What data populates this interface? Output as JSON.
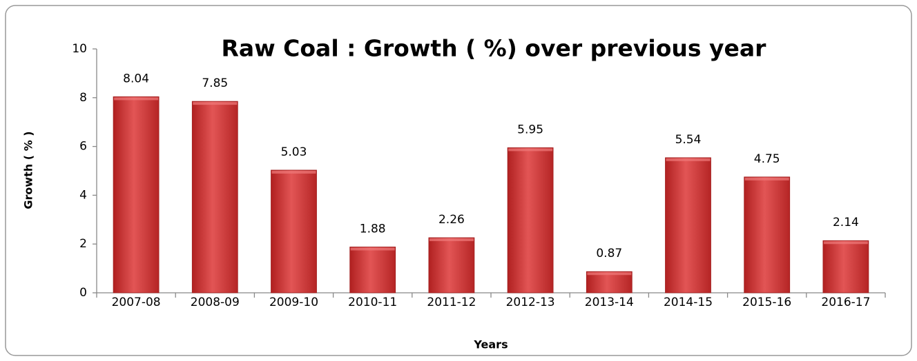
{
  "chart_data": {
    "type": "bar",
    "title": "Raw Coal : Growth ( %) over previous year",
    "x_label": "Years",
    "y_label": "Growth ( % )",
    "categories": [
      "2007-08",
      "2008-09",
      "2009-10",
      "2010-11",
      "2011-12",
      "2012-13",
      "2013-14",
      "2014-15",
      "2015-16",
      "2016-17"
    ],
    "values": [
      8.04,
      7.85,
      5.03,
      1.88,
      2.26,
      5.95,
      0.87,
      5.54,
      4.75,
      2.14
    ],
    "color": "#d23a3a",
    "ylim": [
      0,
      10
    ],
    "yticks": [
      0,
      2,
      4,
      6,
      8,
      10
    ],
    "grid": false
  }
}
